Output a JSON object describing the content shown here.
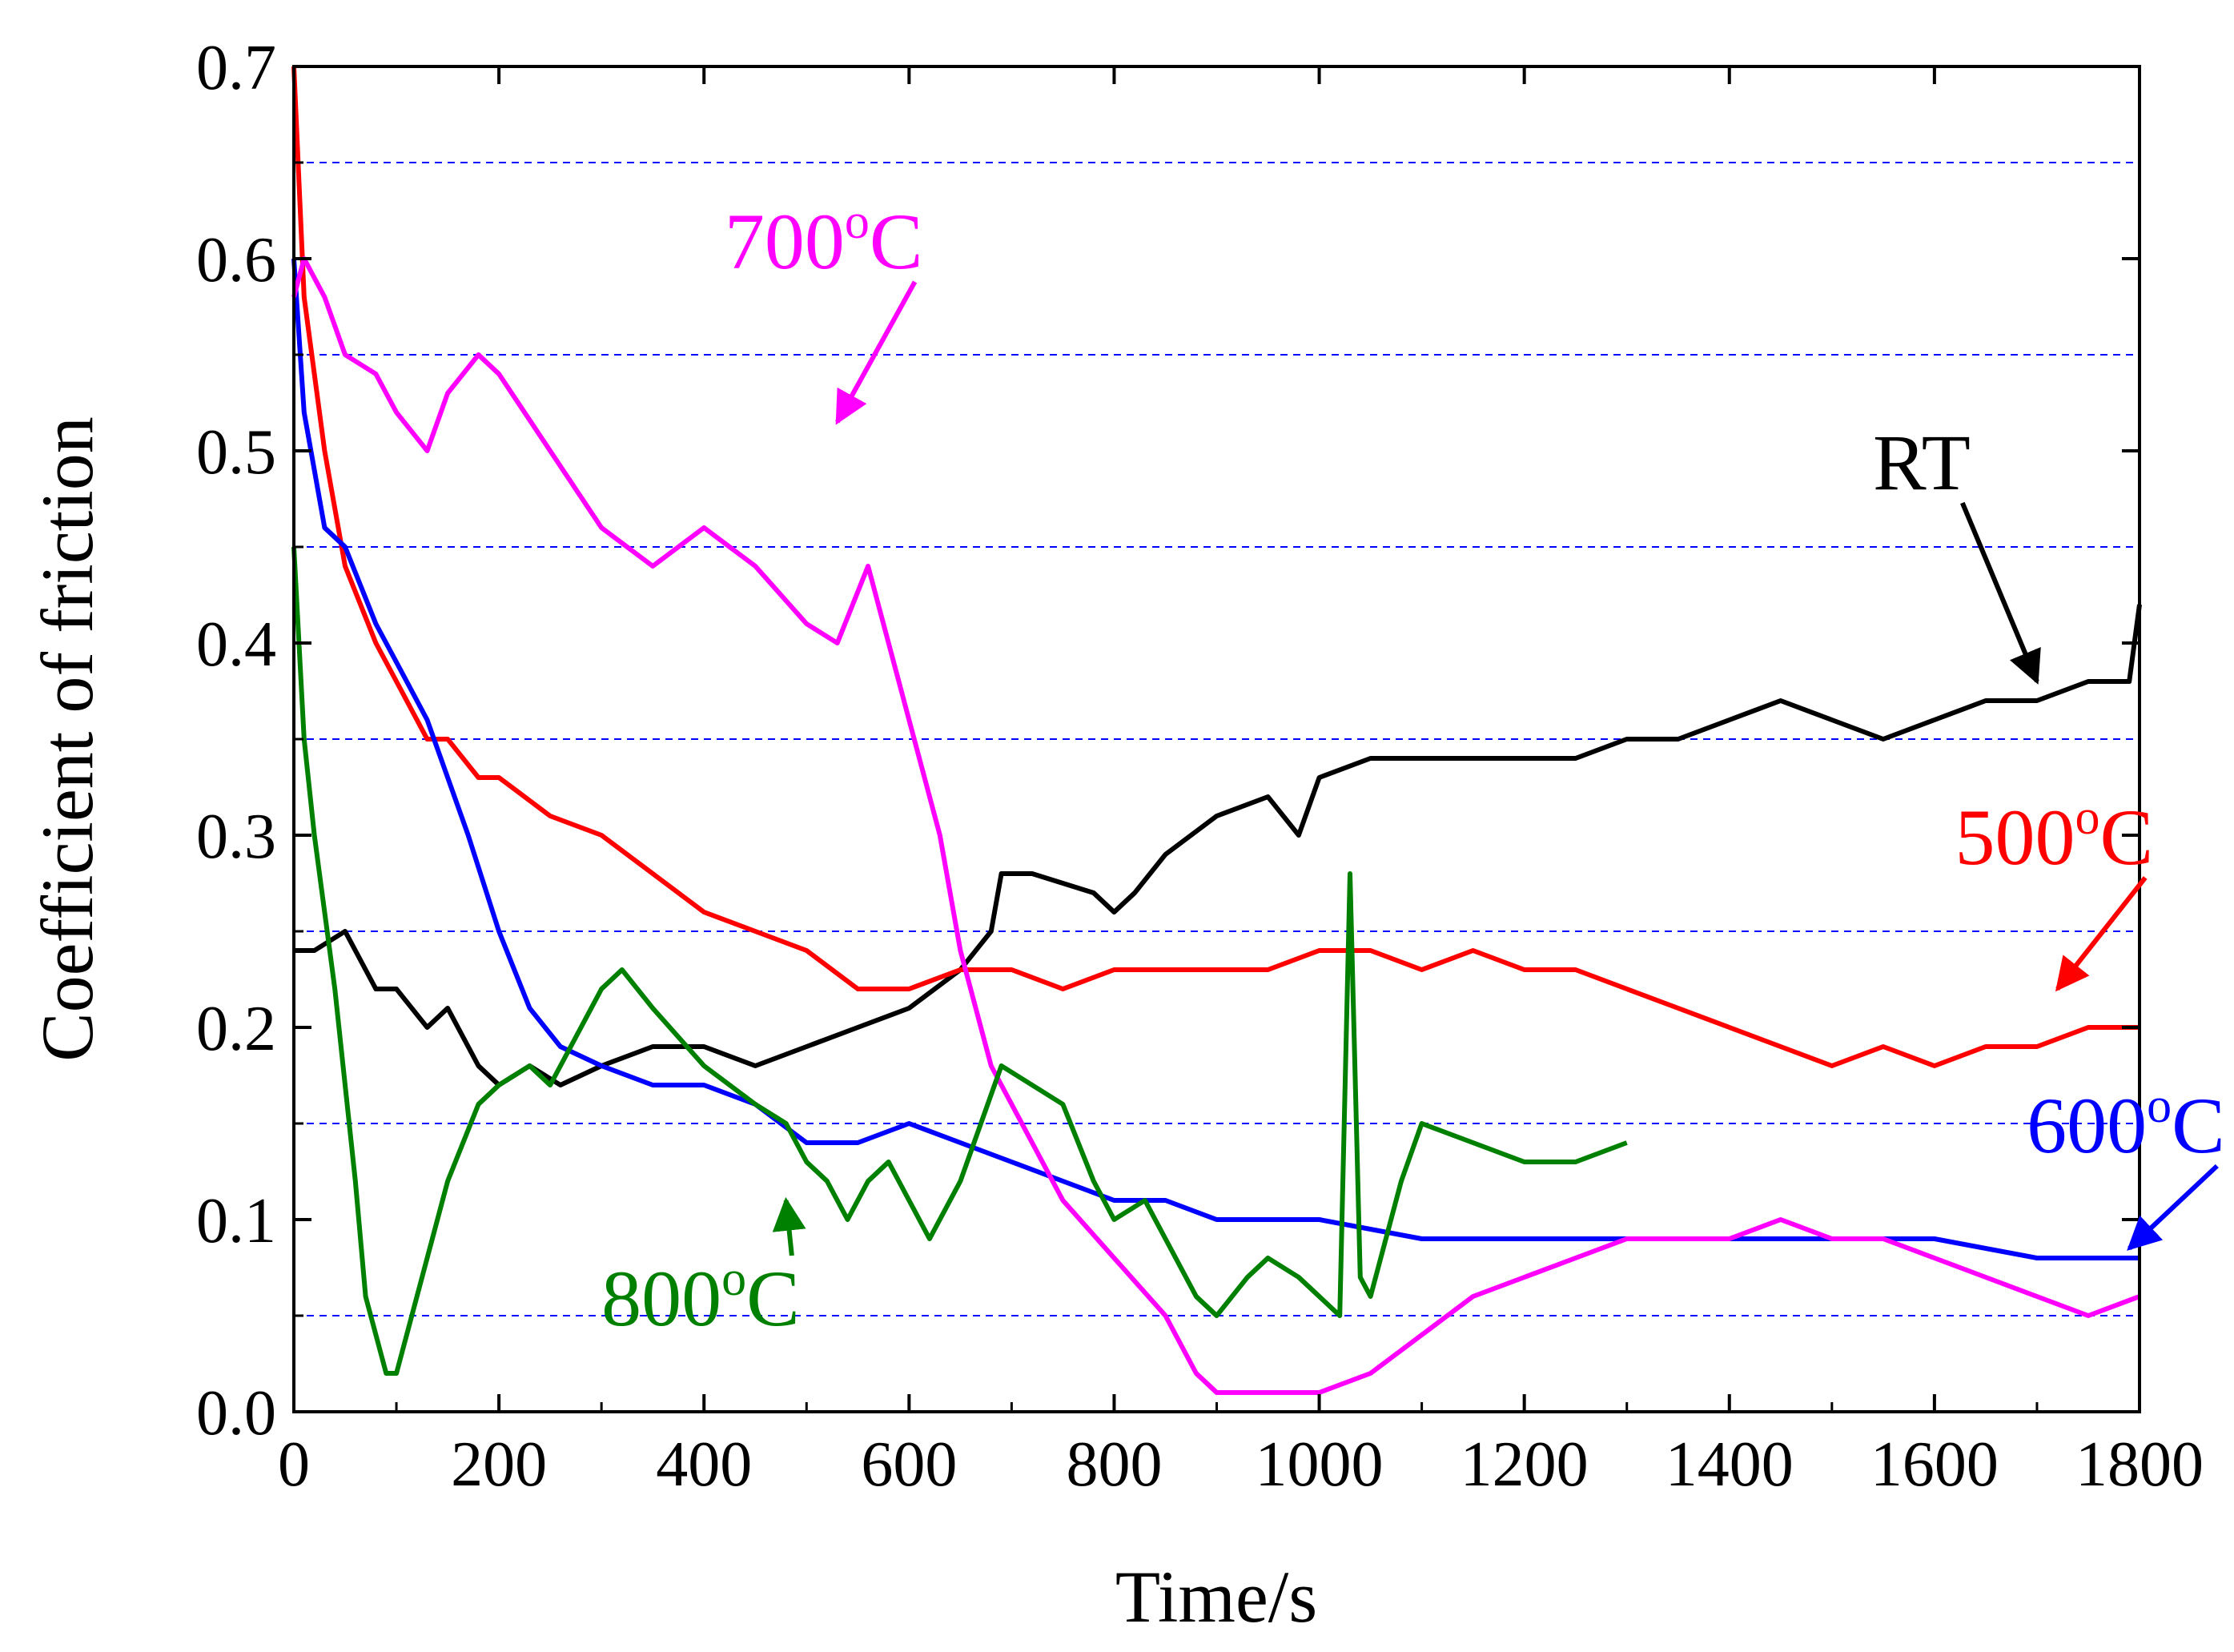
{
  "chart_data": {
    "type": "line",
    "title": "",
    "xlabel": "Time/s",
    "ylabel": "Coefficient of friction",
    "xlim": [
      0,
      1800
    ],
    "ylim": [
      0.0,
      0.7
    ],
    "x_ticks": [
      "0",
      "200",
      "400",
      "600",
      "800",
      "1000",
      "1200",
      "1400",
      "1600",
      "1800"
    ],
    "y_ticks": [
      "0.0",
      "0.1",
      "0.2",
      "0.3",
      "0.4",
      "0.5",
      "0.6",
      "0.7"
    ],
    "grid": {
      "horizontal_dashed_at": [
        0.05,
        0.15,
        0.25,
        0.35,
        0.45,
        0.55,
        0.65
      ],
      "color": "#0000ff"
    },
    "series": [
      {
        "name": "RT",
        "color": "#000000",
        "x": [
          0,
          20,
          50,
          80,
          100,
          130,
          150,
          180,
          200,
          230,
          260,
          300,
          350,
          400,
          450,
          500,
          550,
          600,
          650,
          680,
          690,
          720,
          780,
          800,
          820,
          850,
          900,
          950,
          980,
          1000,
          1050,
          1100,
          1150,
          1200,
          1250,
          1300,
          1350,
          1400,
          1450,
          1500,
          1550,
          1600,
          1650,
          1700,
          1750,
          1790,
          1800
        ],
        "y": [
          0.24,
          0.24,
          0.25,
          0.22,
          0.22,
          0.2,
          0.21,
          0.18,
          0.17,
          0.18,
          0.17,
          0.18,
          0.19,
          0.19,
          0.18,
          0.19,
          0.2,
          0.21,
          0.23,
          0.25,
          0.28,
          0.28,
          0.27,
          0.26,
          0.27,
          0.29,
          0.31,
          0.32,
          0.3,
          0.33,
          0.34,
          0.34,
          0.34,
          0.34,
          0.34,
          0.35,
          0.35,
          0.36,
          0.37,
          0.36,
          0.35,
          0.36,
          0.37,
          0.37,
          0.38,
          0.38,
          0.42
        ]
      },
      {
        "name": "500°C",
        "color": "#ff0000",
        "x": [
          0,
          10,
          30,
          50,
          80,
          100,
          130,
          150,
          180,
          200,
          250,
          300,
          350,
          400,
          450,
          500,
          550,
          600,
          650,
          700,
          750,
          800,
          850,
          900,
          950,
          1000,
          1050,
          1100,
          1150,
          1200,
          1250,
          1300,
          1350,
          1400,
          1450,
          1500,
          1550,
          1600,
          1650,
          1700,
          1750,
          1800
        ],
        "y": [
          0.7,
          0.58,
          0.5,
          0.44,
          0.4,
          0.38,
          0.35,
          0.35,
          0.33,
          0.33,
          0.31,
          0.3,
          0.28,
          0.26,
          0.25,
          0.24,
          0.22,
          0.22,
          0.23,
          0.23,
          0.22,
          0.23,
          0.23,
          0.23,
          0.23,
          0.24,
          0.24,
          0.23,
          0.24,
          0.23,
          0.23,
          0.22,
          0.21,
          0.2,
          0.19,
          0.18,
          0.19,
          0.18,
          0.19,
          0.19,
          0.2,
          0.2
        ]
      },
      {
        "name": "600°C",
        "color": "#0000ff",
        "x": [
          0,
          10,
          30,
          50,
          80,
          100,
          130,
          150,
          170,
          200,
          230,
          260,
          300,
          350,
          400,
          450,
          500,
          550,
          600,
          650,
          700,
          750,
          800,
          850,
          900,
          950,
          1000,
          1100,
          1200,
          1300,
          1400,
          1500,
          1600,
          1700,
          1800
        ],
        "y": [
          0.6,
          0.52,
          0.46,
          0.45,
          0.41,
          0.39,
          0.36,
          0.33,
          0.3,
          0.25,
          0.21,
          0.19,
          0.18,
          0.17,
          0.17,
          0.16,
          0.14,
          0.14,
          0.15,
          0.14,
          0.13,
          0.12,
          0.11,
          0.11,
          0.1,
          0.1,
          0.1,
          0.09,
          0.09,
          0.09,
          0.09,
          0.09,
          0.09,
          0.08,
          0.08
        ]
      },
      {
        "name": "700°C",
        "color": "#ff00ff",
        "x": [
          0,
          10,
          30,
          50,
          80,
          100,
          130,
          150,
          180,
          200,
          250,
          300,
          350,
          400,
          450,
          500,
          530,
          560,
          600,
          630,
          650,
          680,
          700,
          750,
          800,
          850,
          880,
          900,
          950,
          1000,
          1050,
          1100,
          1150,
          1200,
          1250,
          1300,
          1350,
          1400,
          1450,
          1500,
          1550,
          1600,
          1650,
          1700,
          1750,
          1800
        ],
        "y": [
          0.58,
          0.6,
          0.58,
          0.55,
          0.54,
          0.52,
          0.5,
          0.53,
          0.55,
          0.54,
          0.5,
          0.46,
          0.44,
          0.46,
          0.44,
          0.41,
          0.4,
          0.44,
          0.36,
          0.3,
          0.24,
          0.18,
          0.16,
          0.11,
          0.08,
          0.05,
          0.02,
          0.01,
          0.01,
          0.01,
          0.02,
          0.04,
          0.06,
          0.07,
          0.08,
          0.09,
          0.09,
          0.09,
          0.1,
          0.09,
          0.09,
          0.08,
          0.07,
          0.06,
          0.05,
          0.06
        ]
      },
      {
        "name": "800°C",
        "color": "#008000",
        "x": [
          0,
          10,
          20,
          40,
          60,
          70,
          90,
          100,
          130,
          150,
          180,
          200,
          230,
          250,
          280,
          300,
          320,
          350,
          400,
          450,
          480,
          500,
          520,
          540,
          560,
          580,
          600,
          620,
          650,
          670,
          690,
          720,
          750,
          780,
          800,
          830,
          850,
          880,
          900,
          930,
          950,
          980,
          1000,
          1020,
          1030,
          1040,
          1050,
          1060,
          1080,
          1100,
          1150,
          1200,
          1250,
          1300
        ],
        "y": [
          0.45,
          0.35,
          0.3,
          0.22,
          0.12,
          0.06,
          0.02,
          0.02,
          0.08,
          0.12,
          0.16,
          0.17,
          0.18,
          0.17,
          0.2,
          0.22,
          0.23,
          0.21,
          0.18,
          0.16,
          0.15,
          0.13,
          0.12,
          0.1,
          0.12,
          0.13,
          0.11,
          0.09,
          0.12,
          0.15,
          0.18,
          0.17,
          0.16,
          0.12,
          0.1,
          0.11,
          0.09,
          0.06,
          0.05,
          0.07,
          0.08,
          0.07,
          0.06,
          0.05,
          0.28,
          0.07,
          0.06,
          0.08,
          0.12,
          0.15,
          0.14,
          0.13,
          0.13,
          0.14
        ]
      }
    ],
    "annotations": [
      {
        "text": "RT",
        "color": "#000000",
        "x": 1540,
        "y": 0.48,
        "arrow_to": [
          1700,
          0.38
        ]
      },
      {
        "text": "500",
        "superscript": "o",
        "suffix": "C",
        "color": "#ff0000",
        "x": 1620,
        "y": 0.285,
        "arrow_to": [
          1720,
          0.22
        ]
      },
      {
        "text": "600",
        "superscript": "o",
        "suffix": "C",
        "color": "#0000ff",
        "x": 1690,
        "y": 0.135,
        "arrow_to": [
          1790,
          0.085
        ]
      },
      {
        "text": "700",
        "superscript": "o",
        "suffix": "C",
        "color": "#ff00ff",
        "x": 420,
        "y": 0.595,
        "arrow_to": [
          530,
          0.515
        ]
      },
      {
        "text": "800",
        "superscript": "o",
        "suffix": "C",
        "color": "#008000",
        "x": 300,
        "y": 0.045,
        "arrow_to": [
          480,
          0.11
        ]
      }
    ]
  }
}
